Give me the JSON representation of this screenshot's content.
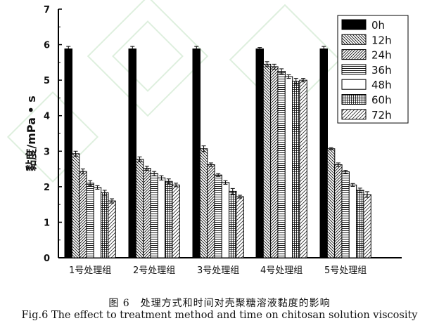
{
  "chart_data": {
    "type": "bar",
    "ylabel": "黏度/mPa • s",
    "xlabel": "",
    "ylim": [
      0,
      7
    ],
    "yticks": [
      0,
      1,
      2,
      3,
      4,
      5,
      6,
      7
    ],
    "categories": [
      "1号处理组",
      "2号处理组",
      "3号处理组",
      "4号处理组",
      "5号处理组"
    ],
    "legend_position": "top-right",
    "series": [
      {
        "name": "0h",
        "pattern": "solid",
        "values": [
          5.88,
          5.88,
          5.88,
          5.88,
          5.88
        ],
        "errors": [
          0.07,
          0.07,
          0.07,
          0.04,
          0.07
        ]
      },
      {
        "name": "12h",
        "pattern": "backdiag",
        "values": [
          2.93,
          2.77,
          3.07,
          5.45,
          3.07
        ],
        "errors": [
          0.07,
          0.07,
          0.08,
          0.07,
          0.03
        ]
      },
      {
        "name": "24h",
        "pattern": "fwddiag",
        "values": [
          2.43,
          2.52,
          2.62,
          5.38,
          2.62
        ],
        "errors": [
          0.07,
          0.06,
          0.05,
          0.07,
          0.05
        ]
      },
      {
        "name": "36h",
        "pattern": "hlines",
        "values": [
          2.1,
          2.37,
          2.33,
          5.25,
          2.42
        ],
        "errors": [
          0.07,
          0.06,
          0.04,
          0.07,
          0.04
        ]
      },
      {
        "name": "48h",
        "pattern": "white",
        "values": [
          1.98,
          2.25,
          2.12,
          5.1,
          2.05
        ],
        "errors": [
          0.05,
          0.06,
          0.05,
          0.05,
          0.04
        ]
      },
      {
        "name": "60h",
        "pattern": "grid",
        "values": [
          1.83,
          2.15,
          1.87,
          4.97,
          1.9
        ],
        "errors": [
          0.07,
          0.07,
          0.08,
          0.08,
          0.06
        ]
      },
      {
        "name": "72h",
        "pattern": "fwddiag2",
        "values": [
          1.6,
          2.05,
          1.72,
          5.0,
          1.78
        ],
        "errors": [
          0.06,
          0.05,
          0.04,
          0.05,
          0.08
        ]
      }
    ]
  },
  "caption": {
    "chinese": "图 6　处理方式和时间对壳聚糖溶液黏度的影响",
    "english": "Fig.6 The effect to treatment method and time on chitosan solution viscosity"
  }
}
